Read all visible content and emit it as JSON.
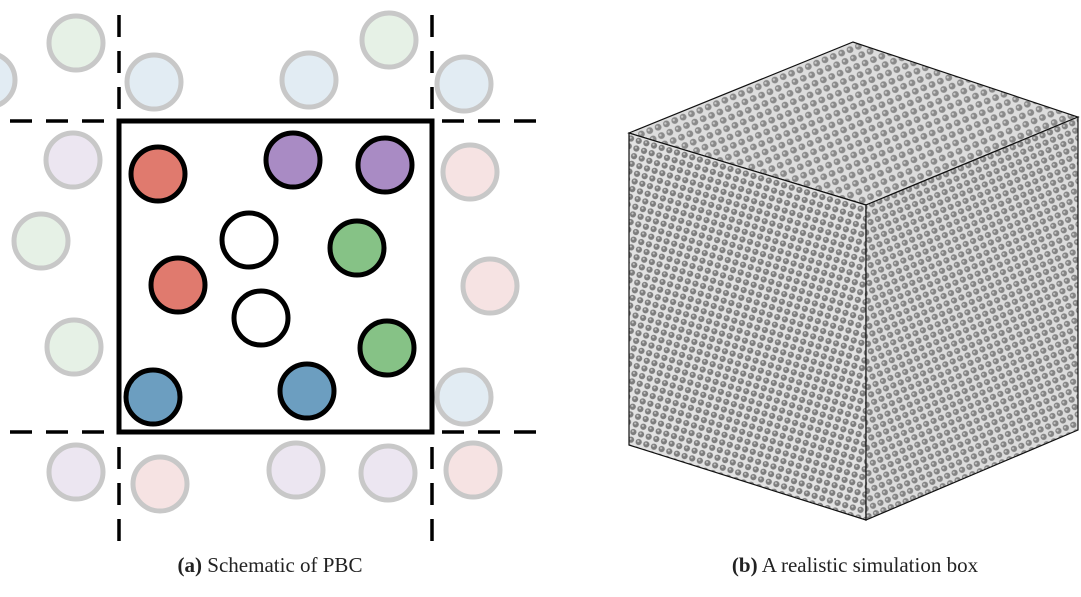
{
  "panels": [
    {
      "label": "(a)",
      "caption": "Schematic of PBC"
    },
    {
      "label": "(b)",
      "caption": "A realistic simulation box"
    }
  ]
}
